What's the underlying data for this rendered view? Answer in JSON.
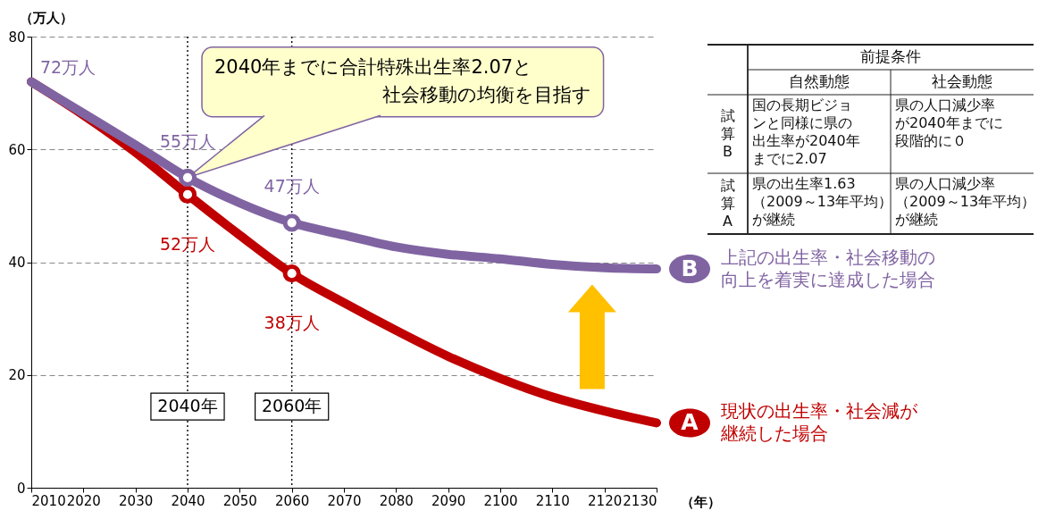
{
  "chart_data": [
    {
      "type": "line",
      "xlabel": "（年）",
      "ylabel": "（万人）",
      "x": [
        2010,
        2020,
        2030,
        2040,
        2050,
        2060,
        2070,
        2080,
        2090,
        2100,
        2110,
        2120,
        2130
      ],
      "xlim": [
        2010,
        2130
      ],
      "xticks": [
        2010,
        2020,
        2030,
        2040,
        2050,
        2060,
        2070,
        2080,
        2090,
        2100,
        2110,
        2120,
        2130
      ],
      "ylim": [
        0,
        80
      ],
      "yticks": [
        0,
        20,
        40,
        60,
        80
      ],
      "grid": "y",
      "legend": "right",
      "series": [
        {
          "name": "上記の出生率・社会移動の向上を着実に達成した場合",
          "color": "#8064a2",
          "values": [
            72,
            66.4,
            60.8,
            55,
            50.5,
            47,
            44.8,
            42.7,
            41.4,
            40.6,
            39.6,
            39.0,
            38.8
          ],
          "value_labels": [
            "72万人",
            null,
            null,
            "55万人",
            null,
            "47万人",
            null,
            null,
            null,
            null,
            null,
            null,
            null
          ]
        },
        {
          "name": "現状の出生率・社会減が継続した場合",
          "color": "#c00000",
          "values": [
            72,
            66.1,
            59.5,
            52,
            44.8,
            38,
            32.8,
            27.9,
            23.3,
            19.4,
            16.1,
            13.6,
            11.5
          ],
          "value_labels": [
            null,
            null,
            null,
            "52万人",
            null,
            "38万人",
            null,
            null,
            null,
            null,
            null,
            null,
            null
          ]
        },
        {
          "type": "scatter",
          "color": "#8064a2",
          "values": [
            null,
            null,
            null,
            55,
            null,
            47,
            null,
            null,
            null,
            null,
            null,
            null,
            null
          ],
          "marker": "circle"
        },
        {
          "type": "scatter",
          "color": "#c00000",
          "values": [
            null,
            null,
            null,
            52,
            null,
            38,
            null,
            null,
            null,
            null,
            null,
            null,
            null
          ],
          "marker": "circle"
        }
      ],
      "ref_lines": [
        {
          "axis": "x",
          "value": 2040,
          "label": "2040年",
          "color": "#000000",
          "line_style": "dotted"
        },
        {
          "axis": "x",
          "value": 2060,
          "label": "2060年",
          "color": "#000000",
          "line_style": "dotted"
        }
      ],
      "annotations": [
        {
          "text": "2040年までに合計特殊出生率2.07と社会移動の均衡を目指す",
          "x": 2040,
          "y": 55
        },
        "B",
        "A"
      ]
    },
    {
      "type": "other",
      "title": "前提条件",
      "categories": [
        "自然動態",
        "社会動態"
      ],
      "y_categories": [
        "試算B",
        "試算A"
      ],
      "cell_labels": [
        [
          "国の長期ビジョンと同様に県の出生率が2040年までに2.07",
          "県の人口減少率が2040年までに段階的に０"
        ],
        [
          "県の出生率1.63（2009～13年平均）が継続",
          "県の人口減少率（2009～13年平均）が継続"
        ]
      ]
    }
  ]
}
